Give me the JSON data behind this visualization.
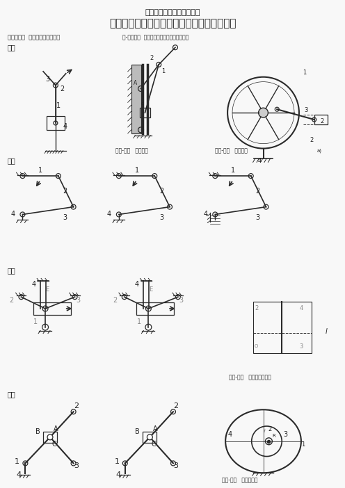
{
  "title1": "机械设计基础课后习题答案",
  "title2": "机械设计基础第１章平面机构自由度习题解答",
  "subtitle_left": "１１至１４  绘制机构运动简图：",
  "subtitle_right": "１-１至１４  绘制现有机构的机构运动简图。",
  "label_11": "１１",
  "label_12": "１２",
  "label_13": "１３",
  "label_14": "１４",
  "fig11_caption": "题１-１图   剪断机构",
  "fig12_caption": "题１-２图   颚碎破裂",
  "fig13_caption": "题１-３图   缝纫机下针机构",
  "fig14_caption": "题１-４图   偏心轮机构",
  "bg_color": "#f8f8f8",
  "line_color": "#2a2a2a",
  "text_color": "#222222",
  "gray_color": "#888888"
}
